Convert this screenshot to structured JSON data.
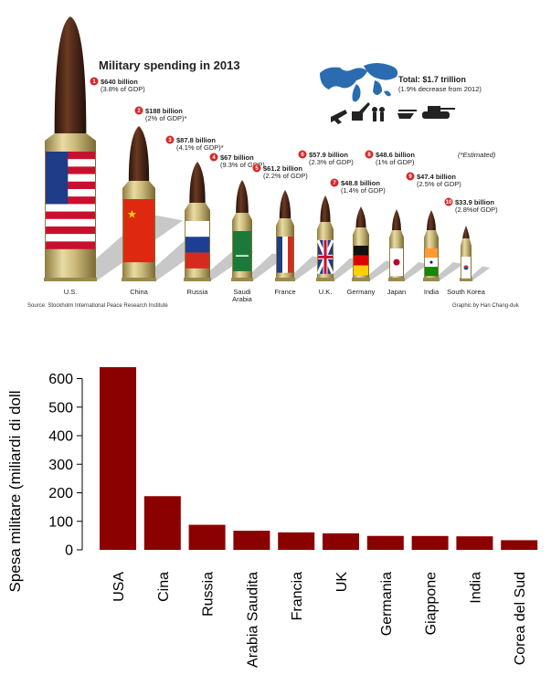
{
  "infographic": {
    "title": "Military spending in 2013",
    "total_label": "Total: $1.7 trillion",
    "total_sub": "(1.9% decrease from 2012)",
    "estimated_note": "(*Estimated)",
    "source": "Source: Stockholm International Peace Research Institute",
    "credit": "Graphic by Han Chang-duk",
    "colors": {
      "rank_badge": "#d42a2a",
      "brass": "#c9b87a",
      "tip": "#4a2a1a",
      "map": "#2b6cb0"
    },
    "items": [
      {
        "rank": "1",
        "country": "U.S.",
        "amount": "$640 billion",
        "pct": "(3.8% of GDP)",
        "flag": "us-flag-icon"
      },
      {
        "rank": "2",
        "country": "China",
        "amount": "$188 billion",
        "pct": "(2% of GDP)*",
        "flag": "china-flag-icon"
      },
      {
        "rank": "3",
        "country": "Russia",
        "amount": "$87.8 billion",
        "pct": "(4.1% of GDP)*",
        "flag": "russia-flag-icon"
      },
      {
        "rank": "4",
        "country": "Saudi",
        "country2": "Arabia",
        "amount": "$67 billion",
        "pct": "(9.3% of GDP)",
        "flag": "saudi-flag-icon"
      },
      {
        "rank": "5",
        "country": "France",
        "amount": "$61.2 billion",
        "pct": "(2.2% of GDP)",
        "flag": "france-flag-icon"
      },
      {
        "rank": "6",
        "country": "U.K.",
        "amount": "$57.9 billion",
        "pct": "(2.3% of GDP)",
        "flag": "uk-flag-icon"
      },
      {
        "rank": "7",
        "country": "Germany",
        "amount": "$48.8 billion",
        "pct": "(1.4% of GDP)",
        "flag": "germany-flag-icon"
      },
      {
        "rank": "8",
        "country": "Japan",
        "amount": "$48.6 billion",
        "pct": "(1% of GDP)",
        "flag": "japan-flag-icon"
      },
      {
        "rank": "9",
        "country": "India",
        "amount": "$47.4 billion",
        "pct": "(2.5% of GDP)",
        "flag": "india-flag-icon"
      },
      {
        "rank": "10",
        "country": "South Korea",
        "amount": "$33.9 billion",
        "pct": "(2.8%of GDP)",
        "flag": "south-korea-flag-icon"
      }
    ]
  },
  "chart_data": {
    "type": "bar",
    "categories": [
      "USA",
      "Cina",
      "Russia",
      "Arabia Saudita",
      "Francia",
      "UK",
      "Germania",
      "Giappone",
      "India",
      "Corea del Sud"
    ],
    "values": [
      640,
      188,
      87.8,
      67,
      61.2,
      57.9,
      48.8,
      48.6,
      47.4,
      33.9
    ],
    "ylabel": "Spesa militare (miliardi di doll",
    "xlabel": "",
    "ylim": [
      0,
      640
    ],
    "yticks": [
      "0",
      "100",
      "200",
      "300",
      "400",
      "500",
      "600"
    ],
    "bar_color": "#8b0000",
    "grid": false
  }
}
